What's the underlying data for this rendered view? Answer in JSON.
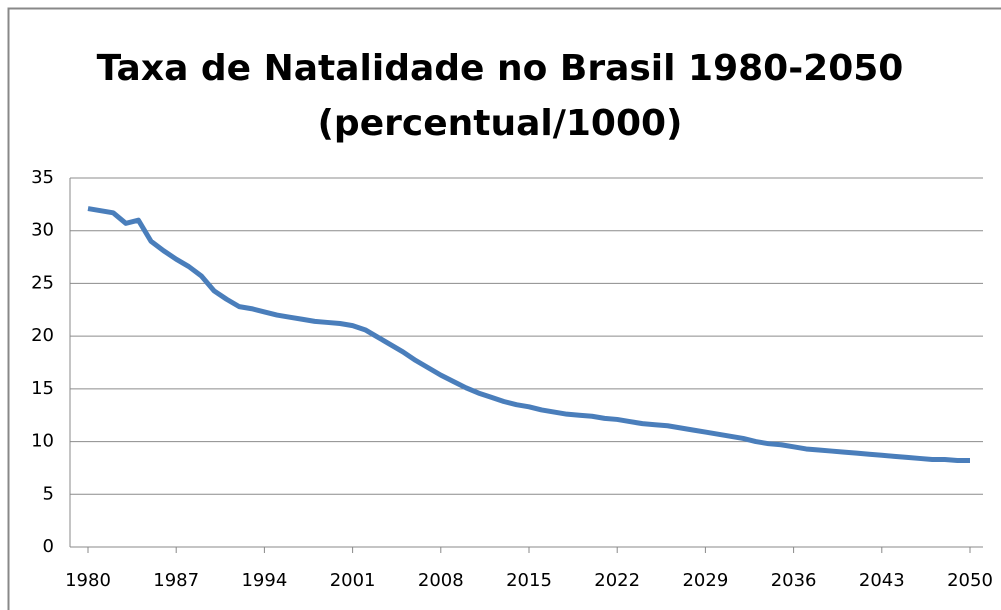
{
  "chart_data": {
    "type": "line",
    "title": [
      "Taxa de Natalidade no Brasil 1980-2050",
      "(percentual/1000)"
    ],
    "x": [
      1980,
      1981,
      1982,
      1983,
      1984,
      1985,
      1986,
      1987,
      1988,
      1989,
      1990,
      1991,
      1992,
      1993,
      1994,
      1995,
      1996,
      1997,
      1998,
      1999,
      2000,
      2001,
      2002,
      2003,
      2004,
      2005,
      2006,
      2007,
      2008,
      2009,
      2010,
      2011,
      2012,
      2013,
      2014,
      2015,
      2016,
      2017,
      2018,
      2019,
      2020,
      2021,
      2022,
      2023,
      2024,
      2025,
      2026,
      2027,
      2028,
      2029,
      2030,
      2031,
      2032,
      2033,
      2034,
      2035,
      2036,
      2037,
      2038,
      2039,
      2040,
      2041,
      2042,
      2043,
      2044,
      2045,
      2046,
      2047,
      2048,
      2049,
      2050
    ],
    "series": [
      {
        "name": "Taxa de Natalidade",
        "color": "#4a7ebb",
        "values": [
          32.1,
          31.9,
          31.7,
          30.7,
          31.0,
          29.0,
          28.1,
          27.3,
          26.6,
          25.7,
          24.3,
          23.5,
          22.8,
          22.6,
          22.3,
          22.0,
          21.8,
          21.6,
          21.4,
          21.3,
          21.2,
          21.0,
          20.6,
          19.9,
          19.2,
          18.5,
          17.7,
          17.0,
          16.3,
          15.7,
          15.1,
          14.6,
          14.2,
          13.8,
          13.5,
          13.3,
          13.0,
          12.8,
          12.6,
          12.5,
          12.4,
          12.2,
          12.1,
          11.9,
          11.7,
          11.6,
          11.5,
          11.3,
          11.1,
          10.9,
          10.7,
          10.5,
          10.3,
          10.0,
          9.8,
          9.7,
          9.5,
          9.3,
          9.2,
          9.1,
          9.0,
          8.9,
          8.8,
          8.7,
          8.6,
          8.5,
          8.4,
          8.3,
          8.3,
          8.2,
          8.2
        ]
      }
    ],
    "xlim": [
      1980,
      2050
    ],
    "xticks": [
      1980,
      1987,
      1994,
      2001,
      2008,
      2015,
      2022,
      2029,
      2036,
      2043,
      2050
    ],
    "ylim": [
      0,
      35
    ],
    "yticks": [
      0,
      5,
      10,
      15,
      20,
      25,
      30,
      35
    ],
    "grid": true
  }
}
